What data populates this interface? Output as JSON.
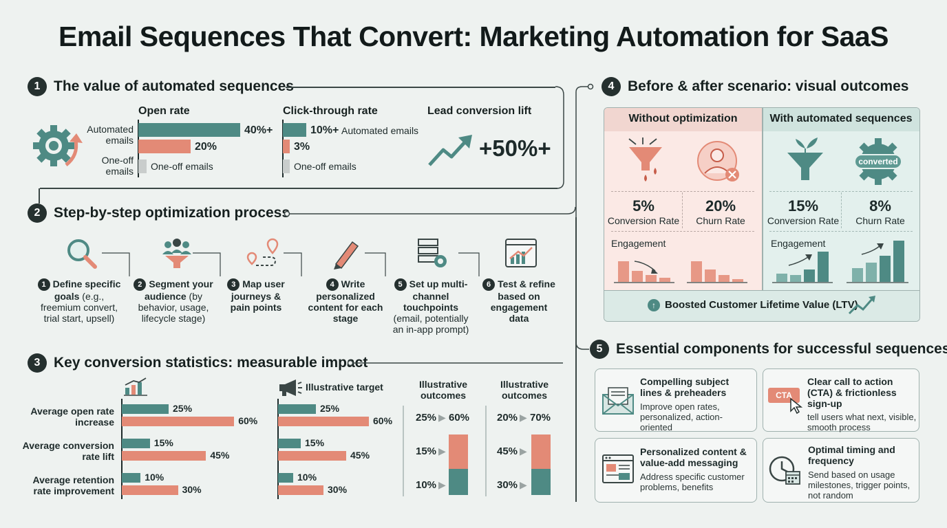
{
  "title": "Email Sequences That Convert: Marketing Automation for SaaS",
  "sections": {
    "s1": {
      "num": "1",
      "title": "The value of automated sequences"
    },
    "s2": {
      "num": "2",
      "title": "Step-by-step optimization process"
    },
    "s3": {
      "num": "3",
      "title": "Key conversion statistics: measurable impact"
    },
    "s4": {
      "num": "4",
      "title": "Before & after scenario: visual outcomes"
    },
    "s5": {
      "num": "5",
      "title": "Essential components for successful sequences"
    }
  },
  "value": {
    "open_rate": {
      "title": "Open rate",
      "automated_label": "Automated emails",
      "oneoff_label": "One-off emails",
      "automated_value": "40%+",
      "oneoff_value": "20%",
      "oneoff_bar_label": "One-off emails"
    },
    "ctr": {
      "title": "Click-through rate",
      "automated_value": "10%+",
      "automated_label": "Automated emails",
      "oneoff_value": "3%",
      "oneoff_bar_label": "One-off emails"
    },
    "lift": {
      "title": "Lead conversion lift",
      "value": "+50%+"
    }
  },
  "chart_data": [
    {
      "type": "bar",
      "title": "Open rate",
      "categories": [
        "Automated emails",
        "One-off emails"
      ],
      "values": [
        40,
        20
      ],
      "labels": [
        "40%+",
        "20%"
      ]
    },
    {
      "type": "bar",
      "title": "Click-through rate",
      "categories": [
        "Automated emails",
        "One-off emails"
      ],
      "values": [
        10,
        3
      ],
      "labels": [
        "10%+",
        "3%"
      ]
    },
    {
      "type": "bar",
      "categories": [
        "Average open rate increase",
        "Average conversion rate lift",
        "Average retention rate improvement"
      ],
      "series": [
        {
          "values": [
            25,
            15,
            10
          ]
        },
        {
          "values": [
            60,
            45,
            30
          ]
        }
      ]
    },
    {
      "type": "bar",
      "title": "Illustrative target",
      "series": [
        {
          "values": [
            25,
            15,
            10
          ]
        },
        {
          "values": [
            60,
            45,
            30
          ]
        }
      ]
    }
  ],
  "steps": [
    {
      "num": "1",
      "title": "Define specific goals",
      "desc": " (e.g., freemium convert, trial start, upsell)"
    },
    {
      "num": "2",
      "title": "Segment your audience",
      "desc": " (by behavior, usage, lifecycle stage)"
    },
    {
      "num": "3",
      "title": "Map user journeys & pain points",
      "desc": ""
    },
    {
      "num": "4",
      "title": "Write personalized content for each stage",
      "desc": ""
    },
    {
      "num": "5",
      "title": "Set up multi-channel touchpoints",
      "desc": " (email, potentially an in-app prompt)"
    },
    {
      "num": "6",
      "title": "Test & refine based on engagement data",
      "desc": ""
    }
  ],
  "stats": {
    "rows": [
      {
        "label": "Average open rate increase",
        "a": "25%",
        "b": "60%"
      },
      {
        "label": "Average conversion rate lift",
        "a": "15%",
        "b": "45%"
      },
      {
        "label": "Average retention rate improvement",
        "a": "10%",
        "b": "30%"
      }
    ],
    "target_label": "Illustrative target",
    "outcomes_label": "Illustrative outcomes",
    "outcomes1": [
      {
        "from": "25%",
        "to": "60%"
      },
      {
        "from": "15%"
      },
      {
        "from": "10%"
      }
    ],
    "outcomes2": [
      {
        "from": "20%",
        "to": "70%"
      },
      {
        "from": "45%"
      },
      {
        "from": "30%"
      }
    ]
  },
  "scenario": {
    "without": {
      "title": "Without optimization",
      "conv_value": "5%",
      "conv_label": "Conversion Rate",
      "churn_value": "20%",
      "churn_label": "Churn Rate",
      "engagement": "Engagement"
    },
    "with": {
      "title": "With automated sequences",
      "badge": "converted",
      "conv_value": "15%",
      "conv_label": "Conversion Rate",
      "churn_value": "8%",
      "churn_label": "Churn Rate",
      "engagement": "Engagement"
    },
    "ltv": "Boosted Customer Lifetime Value (LTV)"
  },
  "components": [
    {
      "title": "Compelling subject lines & preheaders",
      "desc": "Improve open rates, personalized, action-oriented",
      "icon": "envelope-icon"
    },
    {
      "title": "Clear call to action (CTA) & frictionless sign-up",
      "desc": "tell users what next, visible, smooth process",
      "icon": "cta-icon",
      "icon_text": "CTA"
    },
    {
      "title": "Personalized content & value-add messaging",
      "desc": "Address specific customer problems, benefits",
      "icon": "content-window-icon"
    },
    {
      "title": "Optimal timing and frequency",
      "desc": "Send based on usage milestones, trigger points, not random",
      "icon": "clock-calendar-icon"
    }
  ],
  "colors": {
    "teal": "#4e8a84",
    "salmon": "#e38a76",
    "dark": "#25302f",
    "pink_bg": "#fbe9e5",
    "mint_bg": "#e3f0ed"
  }
}
